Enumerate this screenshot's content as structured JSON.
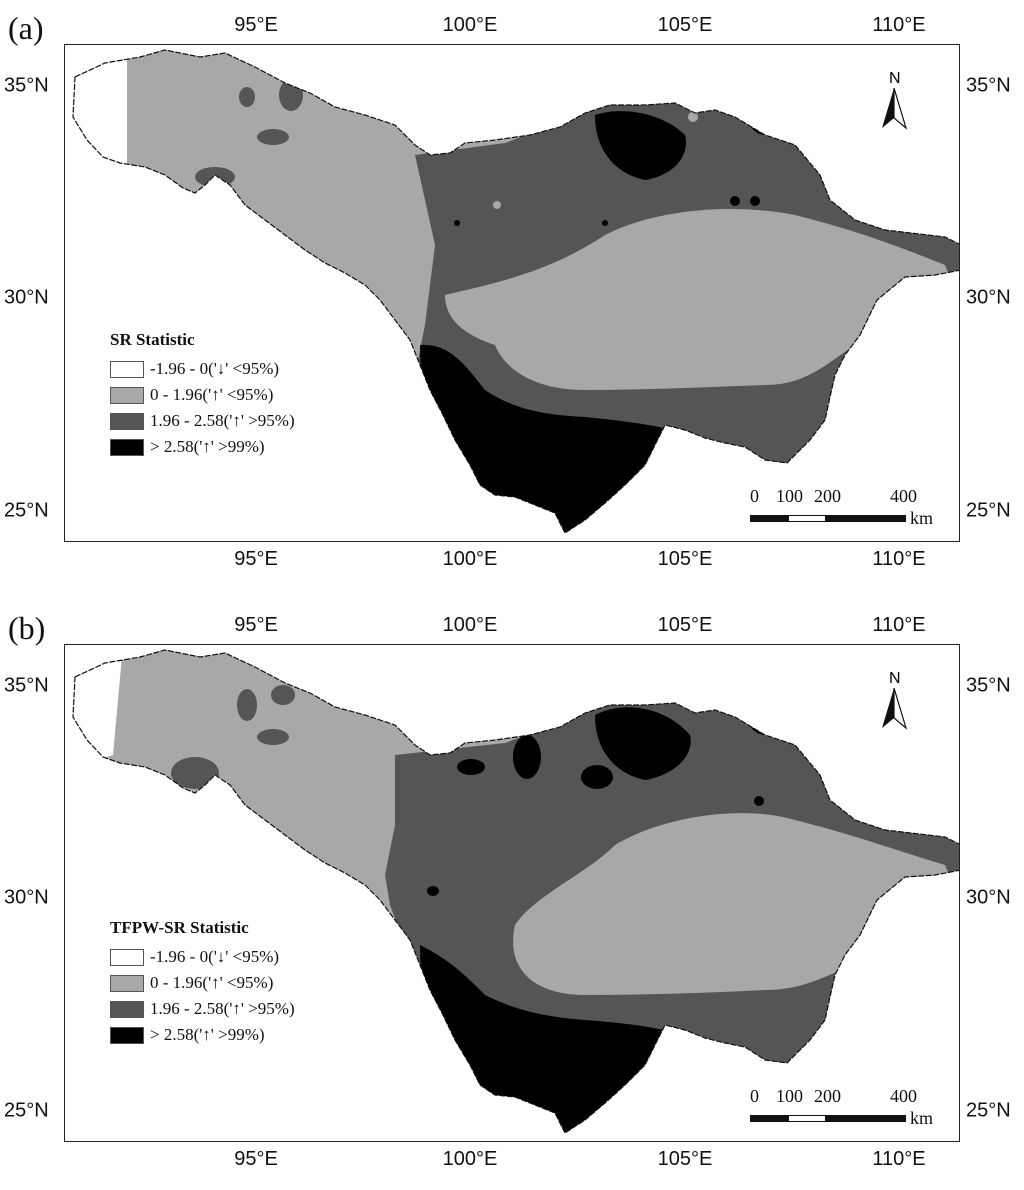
{
  "panels": [
    {
      "label": "(a)",
      "legend_title": "SR Statistic",
      "legend": [
        {
          "text": "-1.96 - 0('↓' <95%)",
          "color": "#ffffff"
        },
        {
          "text": "0 - 1.96('↑' <95%)",
          "color": "#a8a8a8"
        },
        {
          "text": "1.96 - 2.58('↑' >95%)",
          "color": "#555555"
        },
        {
          "text": "> 2.58('↑' >99%)",
          "color": "#000000"
        }
      ]
    },
    {
      "label": "(b)",
      "legend_title": "TFPW-SR Statistic",
      "legend": [
        {
          "text": "-1.96 - 0('↓' <95%)",
          "color": "#ffffff"
        },
        {
          "text": "0 - 1.96('↑' <95%)",
          "color": "#a8a8a8"
        },
        {
          "text": "1.96 - 2.58('↑' >95%)",
          "color": "#555555"
        },
        {
          "text": "> 2.58('↑' >99%)",
          "color": "#000000"
        }
      ]
    }
  ],
  "axes": {
    "longitudes": [
      "95°E",
      "100°E",
      "105°E",
      "110°E"
    ],
    "latitudes": [
      "35°N",
      "30°N",
      "25°N"
    ]
  },
  "scale_bar": {
    "labels": [
      "0",
      "100",
      "200",
      "400"
    ],
    "unit": "km"
  },
  "north_arrow": {
    "label": "N"
  }
}
